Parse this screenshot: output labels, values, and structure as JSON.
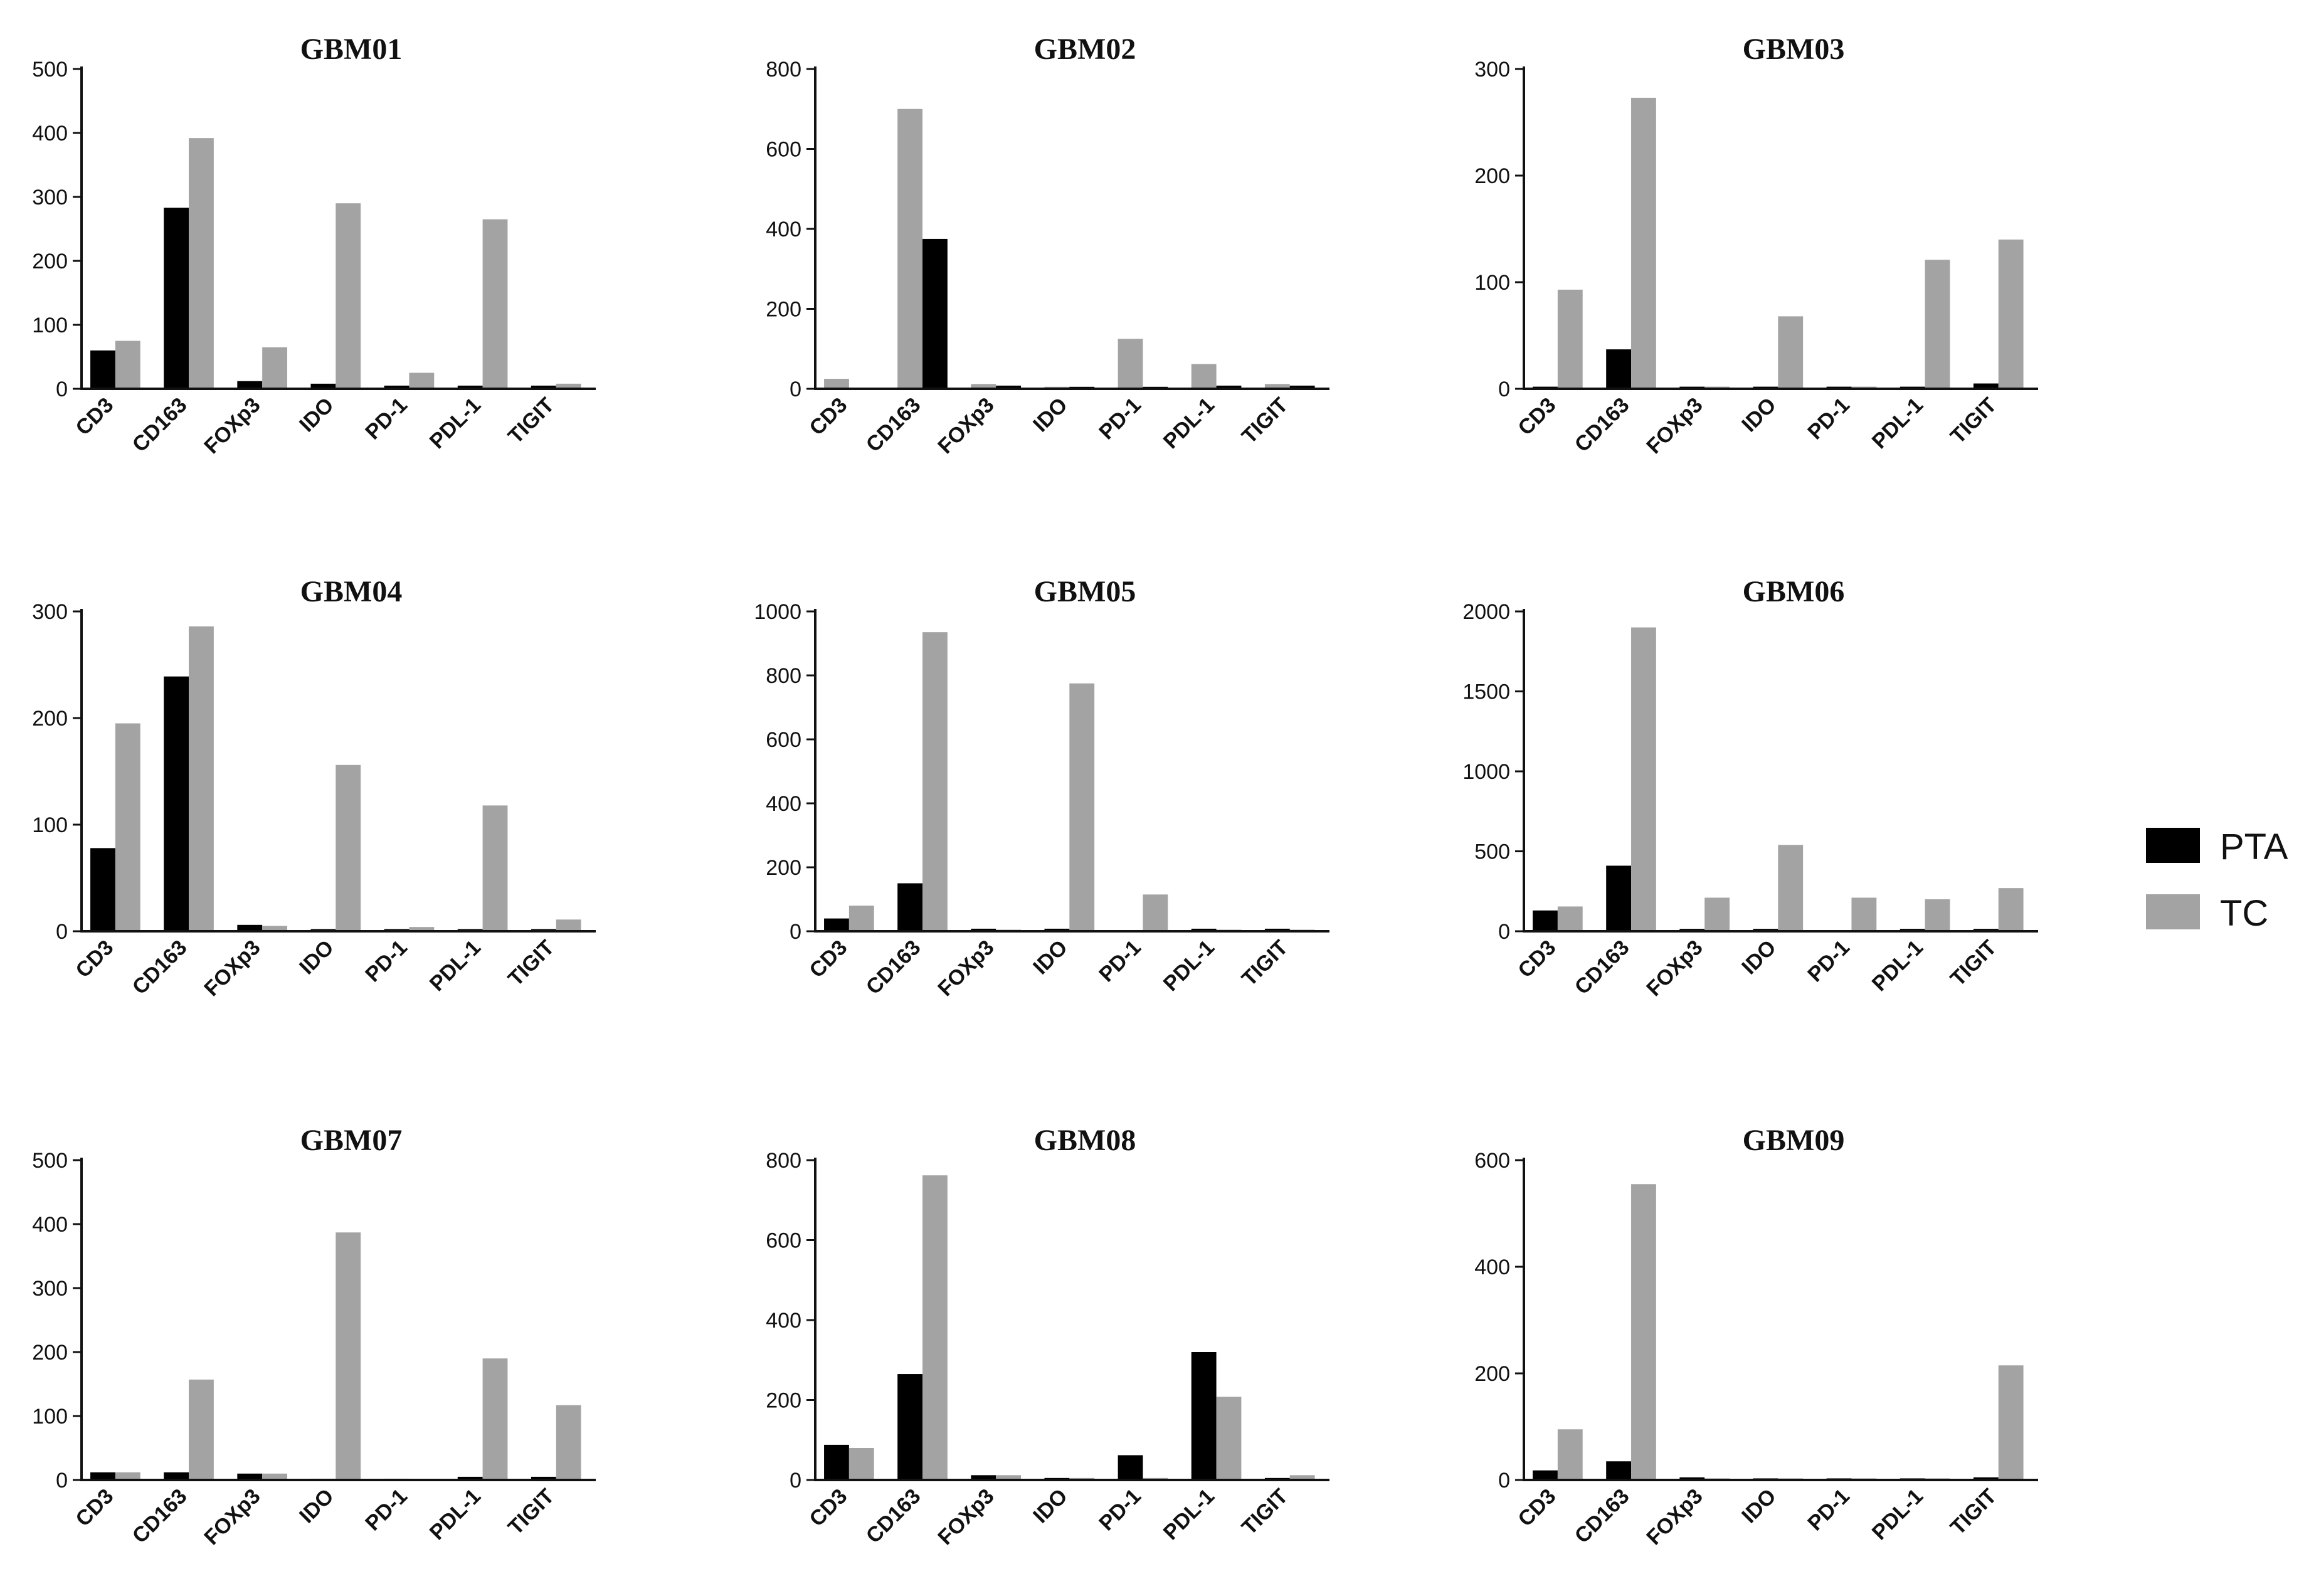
{
  "colors": {
    "PTA": "#000000",
    "TC": "#a3a3a3"
  },
  "legend": [
    {
      "name": "PTA",
      "color": "#000000"
    },
    {
      "name": "TC",
      "color": "#a3a3a3"
    }
  ],
  "chart_data": [
    {
      "type": "bar",
      "title": "GBM01",
      "categories": [
        "CD3",
        "CD163",
        "FOXp3",
        "IDO",
        "PD-1",
        "PDL-1",
        "TIGIT"
      ],
      "ylim": [
        0,
        500
      ],
      "yticks": [
        0,
        100,
        200,
        300,
        400,
        500
      ],
      "series": [
        {
          "name": "PTA",
          "values": [
            60,
            283,
            12,
            8,
            5,
            5,
            5
          ]
        },
        {
          "name": "TC",
          "values": [
            75,
            392,
            65,
            290,
            25,
            265,
            8
          ]
        }
      ]
    },
    {
      "type": "bar",
      "title": "GBM02",
      "categories": [
        "CD3",
        "CD163",
        "FOXp3",
        "IDO",
        "PD-1",
        "PDL-1",
        "TIGIT"
      ],
      "ylim": [
        0,
        800
      ],
      "yticks": [
        0,
        200,
        400,
        600,
        800
      ],
      "series": [
        {
          "name": "PTA",
          "values": [
            0,
            375,
            8,
            5,
            5,
            8,
            8
          ]
        },
        {
          "name": "TC",
          "values": [
            25,
            700,
            12,
            5,
            125,
            62,
            12
          ]
        }
      ],
      "order": [
        "TC",
        "PTA"
      ]
    },
    {
      "type": "bar",
      "title": "GBM03",
      "categories": [
        "CD3",
        "CD163",
        "FOXp3",
        "IDO",
        "PD-1",
        "PDL-1",
        "TIGIT"
      ],
      "ylim": [
        0,
        300
      ],
      "yticks": [
        0,
        100,
        200,
        300
      ],
      "series": [
        {
          "name": "PTA",
          "values": [
            2,
            37,
            2,
            2,
            2,
            2,
            5
          ]
        },
        {
          "name": "TC",
          "values": [
            93,
            273,
            2,
            68,
            2,
            121,
            140
          ]
        }
      ]
    },
    {
      "type": "bar",
      "title": "GBM04",
      "categories": [
        "CD3",
        "CD163",
        "FOXp3",
        "IDO",
        "PD-1",
        "PDL-1",
        "TIGIT"
      ],
      "ylim": [
        0,
        300
      ],
      "yticks": [
        0,
        100,
        200,
        300
      ],
      "series": [
        {
          "name": "PTA",
          "values": [
            78,
            239,
            6,
            2,
            2,
            2,
            2
          ]
        },
        {
          "name": "TC",
          "values": [
            195,
            286,
            5,
            156,
            4,
            118,
            11
          ]
        }
      ]
    },
    {
      "type": "bar",
      "title": "GBM05",
      "categories": [
        "CD3",
        "CD163",
        "FOXp3",
        "IDO",
        "PD-1",
        "PDL-1",
        "TIGIT"
      ],
      "ylim": [
        0,
        1000
      ],
      "yticks": [
        0,
        200,
        400,
        600,
        800,
        1000
      ],
      "series": [
        {
          "name": "PTA",
          "values": [
            40,
            150,
            8,
            8,
            0,
            8,
            8
          ]
        },
        {
          "name": "TC",
          "values": [
            80,
            935,
            5,
            775,
            115,
            5,
            5
          ]
        }
      ]
    },
    {
      "type": "bar",
      "title": "GBM06",
      "categories": [
        "CD3",
        "CD163",
        "FOXp3",
        "IDO",
        "PD-1",
        "PDL-1",
        "TIGIT"
      ],
      "ylim": [
        0,
        2000
      ],
      "yticks": [
        0,
        500,
        1000,
        1500,
        2000
      ],
      "series": [
        {
          "name": "PTA",
          "values": [
            130,
            410,
            15,
            15,
            0,
            15,
            15
          ]
        },
        {
          "name": "TC",
          "values": [
            155,
            1900,
            210,
            540,
            210,
            200,
            270
          ]
        }
      ]
    },
    {
      "type": "bar",
      "title": "GBM07",
      "categories": [
        "CD3",
        "CD163",
        "FOXp3",
        "IDO",
        "PD-1",
        "PDL-1",
        "TIGIT"
      ],
      "ylim": [
        0,
        500
      ],
      "yticks": [
        0,
        100,
        200,
        300,
        400,
        500
      ],
      "series": [
        {
          "name": "PTA",
          "values": [
            12,
            12,
            10,
            2,
            2,
            5,
            5
          ]
        },
        {
          "name": "TC",
          "values": [
            12,
            157,
            10,
            387,
            2,
            190,
            117
          ]
        }
      ]
    },
    {
      "type": "bar",
      "title": "GBM08",
      "categories": [
        "CD3",
        "CD163",
        "FOXp3",
        "IDO",
        "PD-1",
        "PDL-1",
        "TIGIT"
      ],
      "ylim": [
        0,
        800
      ],
      "yticks": [
        0,
        200,
        400,
        600,
        800
      ],
      "series": [
        {
          "name": "PTA",
          "values": [
            88,
            265,
            12,
            5,
            62,
            320,
            5
          ]
        },
        {
          "name": "TC",
          "values": [
            80,
            762,
            12,
            5,
            5,
            208,
            12
          ]
        }
      ]
    },
    {
      "type": "bar",
      "title": "GBM09",
      "categories": [
        "CD3",
        "CD163",
        "FOXp3",
        "IDO",
        "PD-1",
        "PDL-1",
        "TIGIT"
      ],
      "ylim": [
        0,
        600
      ],
      "yticks": [
        0,
        200,
        400,
        600
      ],
      "series": [
        {
          "name": "PTA",
          "values": [
            18,
            35,
            5,
            3,
            3,
            3,
            5
          ]
        },
        {
          "name": "TC",
          "values": [
            95,
            555,
            3,
            3,
            3,
            3,
            215
          ]
        }
      ]
    }
  ]
}
